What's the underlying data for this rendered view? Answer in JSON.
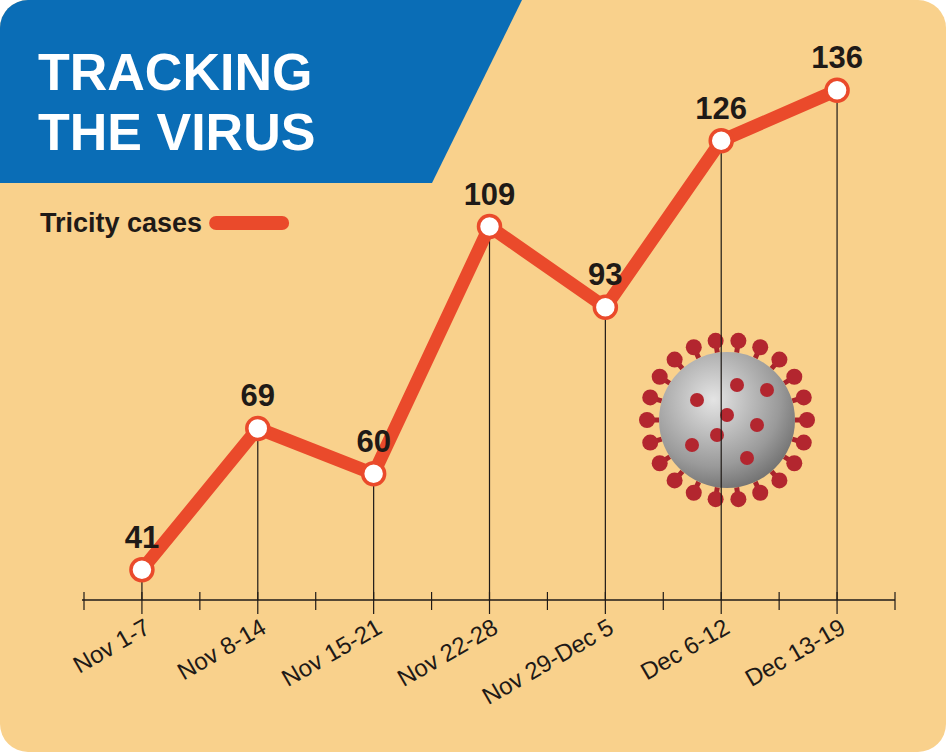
{
  "chart_data": {
    "type": "line",
    "title": "TRACKING THE VIRUS",
    "categories": [
      "Nov 1-7",
      "Nov 8-14",
      "Nov 15-21",
      "Nov 22-28",
      "Nov 29-Dec 5",
      "Dec 6-12",
      "Dec 13-19"
    ],
    "series": [
      {
        "name": "Tricity cases",
        "color": "#ea4a2b",
        "values": [
          41,
          69,
          60,
          109,
          93,
          126,
          136
        ],
        "marker": "circle"
      }
    ],
    "ylim": [
      35,
      142
    ],
    "data_labels": true,
    "tick_labels": "x",
    "legend": "top-left",
    "grid": false
  }
}
